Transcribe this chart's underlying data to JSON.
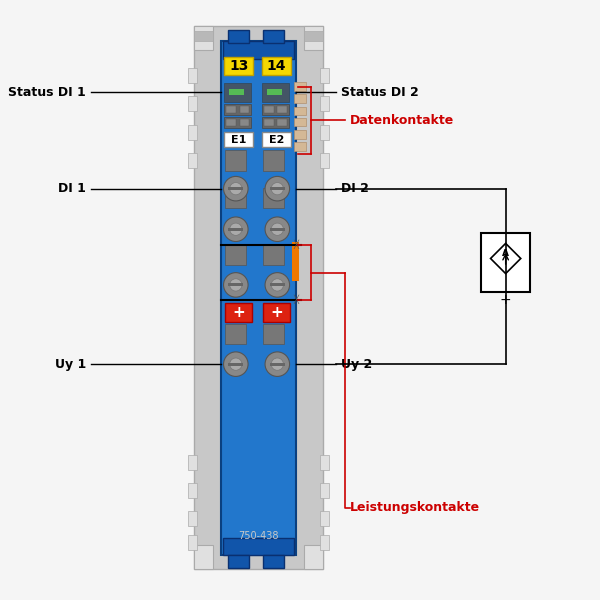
{
  "bg_color": "#f5f5f5",
  "module_blue": "#2277cc",
  "module_dark_blue": "#1155aa",
  "frame_gray": "#c8c8c8",
  "frame_light": "#e0e0e0",
  "gray_dark": "#777777",
  "gray_mid": "#999999",
  "gray_light": "#bbbbbb",
  "white": "#ffffff",
  "yellow": "#f5d800",
  "red_bright": "#dd2211",
  "orange": "#f07800",
  "green_led": "#55bb55",
  "beige": "#d4b896",
  "black": "#111111",
  "ann_red": "#cc0000",
  "num13": "13",
  "num14": "14",
  "e1": "E1",
  "e2": "E2",
  "part_num": "750-438",
  "label_status_di1": "Status DI 1",
  "label_status_di2": "Status DI 2",
  "label_datenkontakte": "Datenkontakte",
  "label_di1": "DI 1",
  "label_di2": "DI 2",
  "label_uy1": "Uy 1",
  "label_uy2": "Uy 2",
  "label_leistung": "Leistungskontakte"
}
